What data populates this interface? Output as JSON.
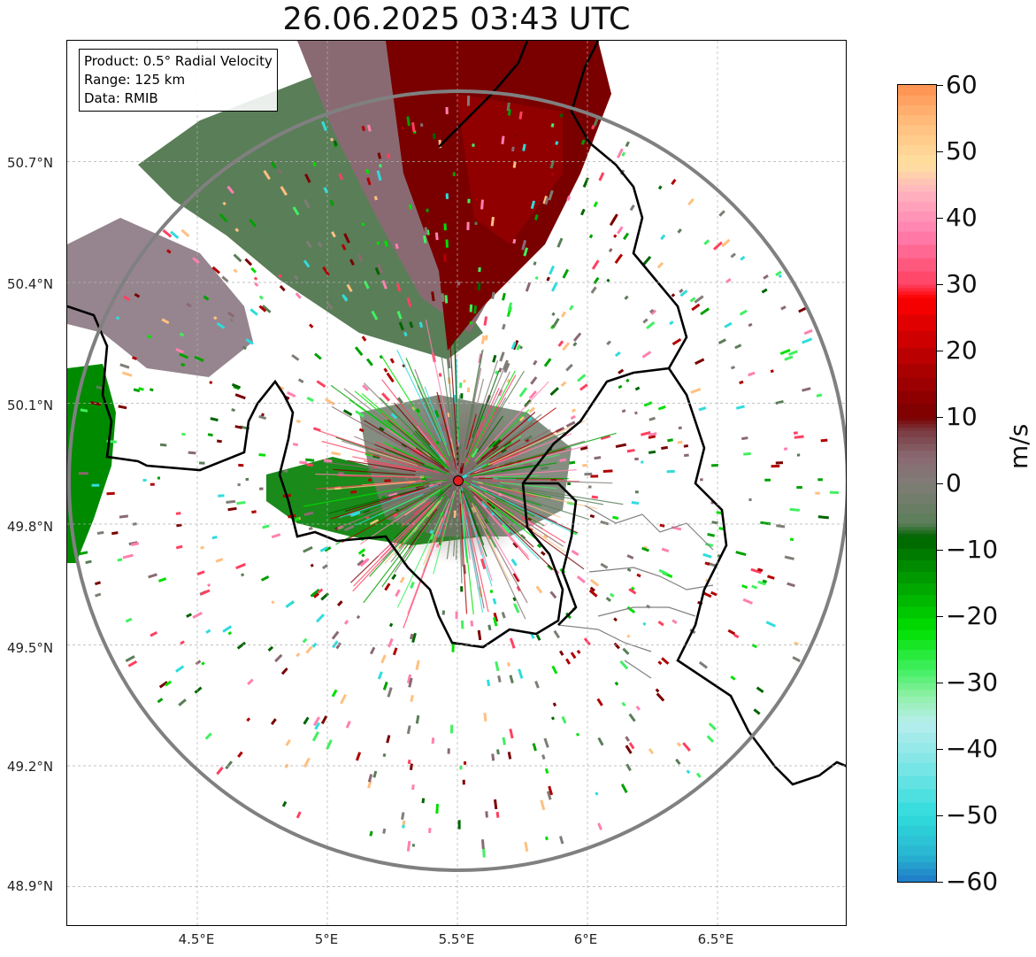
{
  "title": "26.06.2025 03:43 UTC",
  "info_box": {
    "product": "Product: 0.5° Radial Velocity",
    "range": "Range: 125 km",
    "data": "Data: RMIB"
  },
  "map": {
    "lat_labels": [
      "50.7°N",
      "50.4°N",
      "50.1°N",
      "49.8°N",
      "49.5°N",
      "49.2°N",
      "48.9°N"
    ],
    "lat_values": [
      50.7,
      50.4,
      50.1,
      49.8,
      49.5,
      49.2,
      48.9
    ],
    "lon_labels": [
      "4.5°E",
      "5°E",
      "5.5°E",
      "6°E",
      "6.5°E"
    ],
    "lon_values": [
      4.5,
      5.0,
      5.5,
      6.0,
      6.5
    ],
    "extent": {
      "lon_min": 4.0,
      "lon_max": 7.0,
      "lat_min": 48.8,
      "lat_max": 51.0
    },
    "radar_site": {
      "lon": 5.505,
      "lat": 49.914,
      "marker_color": "#e02020"
    },
    "range_ring_km": 125,
    "colors": {
      "inbound_dark": "#006400",
      "inbound_mid": "#00a000",
      "outbound_dark": "#7a0000",
      "outbound_light": "#8a6a70",
      "near_zero": "#5c7f5a",
      "ring": "#808080",
      "border_national": "#000000",
      "border_regional": "#808080",
      "grid": "#b0b0b0"
    }
  },
  "colorbar": {
    "unit": "m/s",
    "ticks": [
      "60",
      "50",
      "40",
      "30",
      "20",
      "10",
      "0",
      "−10",
      "−20",
      "−30",
      "−40",
      "−50",
      "−60"
    ],
    "tick_values": [
      60,
      50,
      40,
      30,
      20,
      10,
      0,
      -10,
      -20,
      -30,
      -40,
      -50,
      -60
    ],
    "min": -60,
    "max": 60,
    "stops": [
      {
        "v": -60,
        "c": "#1f78c8"
      },
      {
        "v": -56,
        "c": "#28b4d0"
      },
      {
        "v": -50,
        "c": "#30dcdc"
      },
      {
        "v": -42,
        "c": "#80e6e6"
      },
      {
        "v": -36,
        "c": "#b8eeee"
      },
      {
        "v": -32,
        "c": "#90f0a8"
      },
      {
        "v": -28,
        "c": "#40f060"
      },
      {
        "v": -22,
        "c": "#00e000"
      },
      {
        "v": -15,
        "c": "#00a000"
      },
      {
        "v": -8,
        "c": "#006400"
      },
      {
        "v": -6,
        "c": "#5a7e58"
      },
      {
        "v": 0,
        "c": "#807c76"
      },
      {
        "v": 4,
        "c": "#8a6a72"
      },
      {
        "v": 8,
        "c": "#7a3a40"
      },
      {
        "v": 10,
        "c": "#7a0000"
      },
      {
        "v": 18,
        "c": "#b00000"
      },
      {
        "v": 28,
        "c": "#ff0000"
      },
      {
        "v": 30,
        "c": "#ff4060"
      },
      {
        "v": 38,
        "c": "#ff80b0"
      },
      {
        "v": 44,
        "c": "#ffb4c0"
      },
      {
        "v": 48,
        "c": "#ffe0a0"
      },
      {
        "v": 54,
        "c": "#ffc080"
      },
      {
        "v": 60,
        "c": "#ff9050"
      }
    ]
  }
}
